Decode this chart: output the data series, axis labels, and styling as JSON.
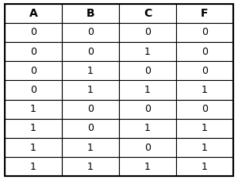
{
  "headers": [
    "A",
    "B",
    "C",
    "F"
  ],
  "rows": [
    [
      "0",
      "0",
      "0",
      "0"
    ],
    [
      "0",
      "0",
      "1",
      "0"
    ],
    [
      "0",
      "1",
      "0",
      "0"
    ],
    [
      "0",
      "1",
      "1",
      "1"
    ],
    [
      "1",
      "0",
      "0",
      "0"
    ],
    [
      "1",
      "0",
      "1",
      "1"
    ],
    [
      "1",
      "1",
      "0",
      "1"
    ],
    [
      "1",
      "1",
      "1",
      "1"
    ]
  ],
  "header_fontsize": 10,
  "cell_fontsize": 9,
  "header_fontweight": "bold",
  "cell_fontweight": "normal",
  "bg_color": "#ffffff",
  "border_color": "#000000",
  "text_color": "#000000",
  "outer_border_lw": 1.5,
  "inner_border_lw": 0.8,
  "fig_width": 3.0,
  "fig_height": 2.27
}
